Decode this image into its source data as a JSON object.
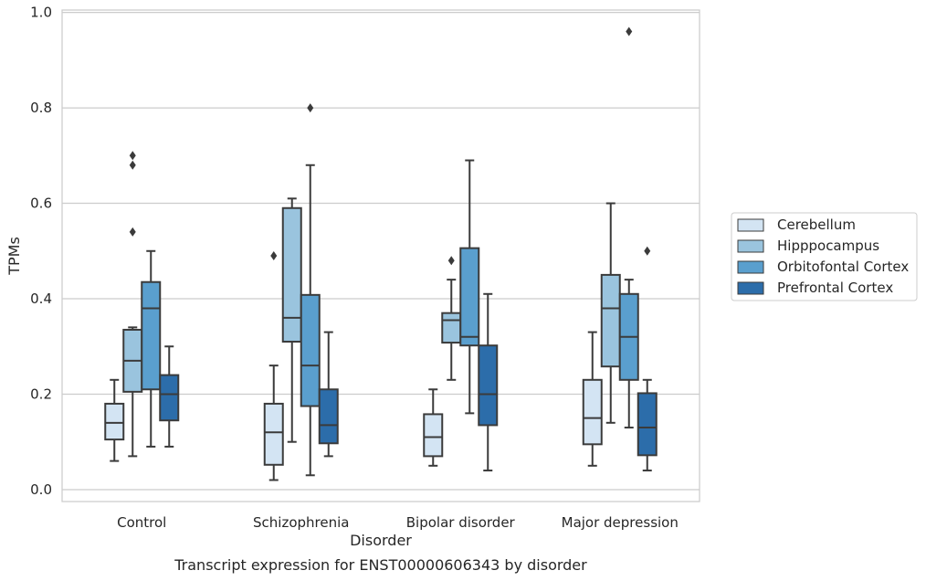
{
  "caption": "Transcript expression for ENST00000606343 by disorder",
  "chart_data": {
    "type": "box",
    "title": "",
    "xlabel": "Disorder",
    "ylabel": "TPMs",
    "ylim": [
      -0.025,
      1.005
    ],
    "yticks": [
      "0.0",
      "0.2",
      "0.4",
      "0.6",
      "0.8",
      "1.0"
    ],
    "grid": "horizontal",
    "legend_position": "right",
    "categories": [
      "Control",
      "Schizophrenia",
      "Bipolar disorder",
      "Major depression"
    ],
    "series": [
      {
        "name": "Cerebellum",
        "color": "#d3e4f3",
        "boxes": [
          {
            "whislo": 0.06,
            "q1": 0.105,
            "med": 0.14,
            "q3": 0.18,
            "whishi": 0.23,
            "fliers": []
          },
          {
            "whislo": 0.02,
            "q1": 0.052,
            "med": 0.12,
            "q3": 0.18,
            "whishi": 0.26,
            "fliers": [
              0.49
            ]
          },
          {
            "whislo": 0.05,
            "q1": 0.07,
            "med": 0.11,
            "q3": 0.158,
            "whishi": 0.21,
            "fliers": []
          },
          {
            "whislo": 0.05,
            "q1": 0.095,
            "med": 0.15,
            "q3": 0.23,
            "whishi": 0.33,
            "fliers": []
          }
        ]
      },
      {
        "name": "Hipppocampus",
        "color": "#9ac4de",
        "boxes": [
          {
            "whislo": 0.07,
            "q1": 0.205,
            "med": 0.27,
            "q3": 0.335,
            "whishi": 0.34,
            "fliers": [
              0.54,
              0.68,
              0.7
            ]
          },
          {
            "whislo": 0.1,
            "q1": 0.31,
            "med": 0.36,
            "q3": 0.59,
            "whishi": 0.61,
            "fliers": []
          },
          {
            "whislo": 0.23,
            "q1": 0.308,
            "med": 0.355,
            "q3": 0.37,
            "whishi": 0.44,
            "fliers": [
              0.48
            ]
          },
          {
            "whislo": 0.14,
            "q1": 0.258,
            "med": 0.38,
            "q3": 0.45,
            "whishi": 0.6,
            "fliers": []
          }
        ]
      },
      {
        "name": "Orbitofontal Cortex",
        "color": "#5a9fce",
        "boxes": [
          {
            "whislo": 0.09,
            "q1": 0.21,
            "med": 0.38,
            "q3": 0.435,
            "whishi": 0.5,
            "fliers": []
          },
          {
            "whislo": 0.03,
            "q1": 0.175,
            "med": 0.26,
            "q3": 0.408,
            "whishi": 0.68,
            "fliers": [
              0.8
            ]
          },
          {
            "whislo": 0.16,
            "q1": 0.302,
            "med": 0.32,
            "q3": 0.506,
            "whishi": 0.69,
            "fliers": []
          },
          {
            "whislo": 0.13,
            "q1": 0.23,
            "med": 0.32,
            "q3": 0.41,
            "whishi": 0.44,
            "fliers": [
              0.96
            ]
          }
        ]
      },
      {
        "name": "Prefrontal Cortex",
        "color": "#2c6daa",
        "boxes": [
          {
            "whislo": 0.09,
            "q1": 0.145,
            "med": 0.2,
            "q3": 0.24,
            "whishi": 0.3,
            "fliers": []
          },
          {
            "whislo": 0.07,
            "q1": 0.097,
            "med": 0.135,
            "q3": 0.21,
            "whishi": 0.33,
            "fliers": []
          },
          {
            "whislo": 0.04,
            "q1": 0.135,
            "med": 0.2,
            "q3": 0.302,
            "whishi": 0.41,
            "fliers": []
          },
          {
            "whislo": 0.04,
            "q1": 0.072,
            "med": 0.13,
            "q3": 0.202,
            "whishi": 0.23,
            "fliers": [
              0.5
            ]
          }
        ]
      }
    ]
  }
}
